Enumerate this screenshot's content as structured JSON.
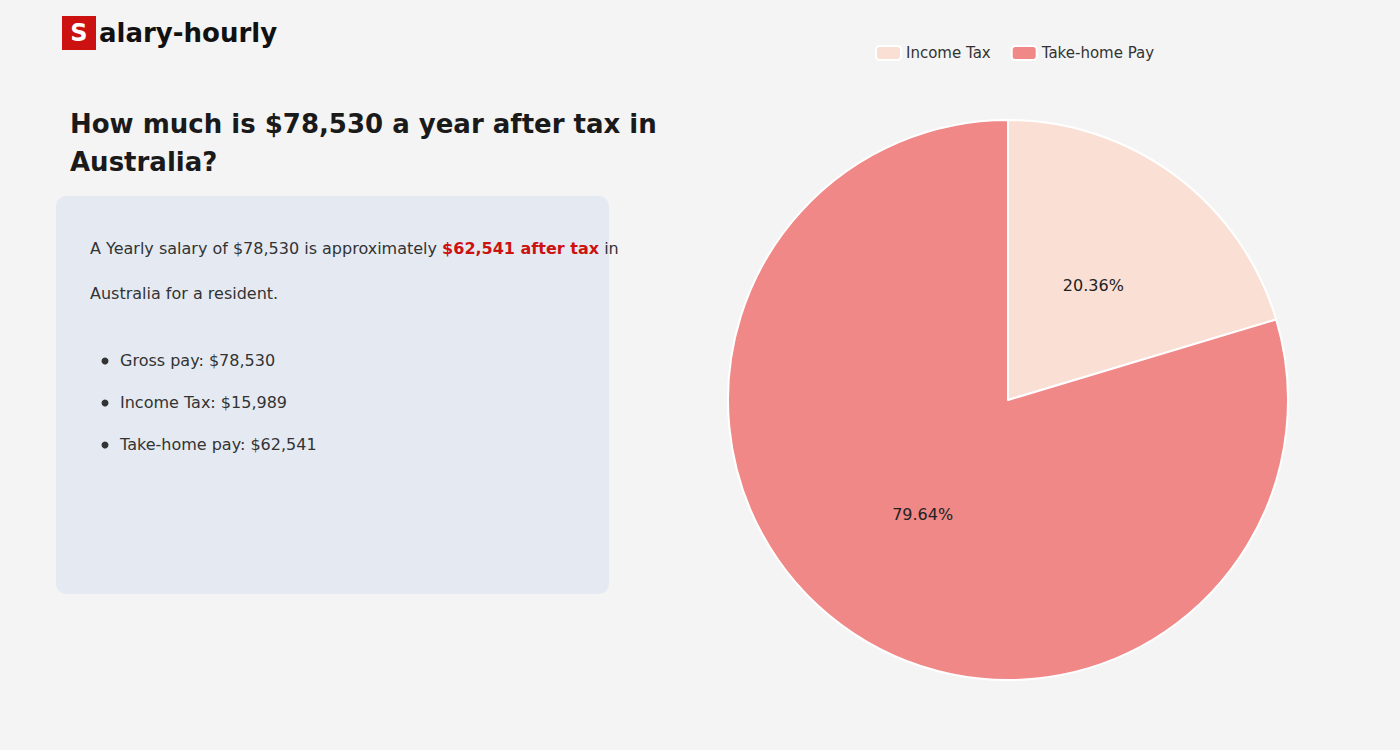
{
  "chart_data": {
    "type": "pie",
    "title": "How much is $78,530 a year after tax in\nAustralia?",
    "categories": [
      "Income Tax",
      "Take-home Pay"
    ],
    "values": [
      20.36,
      79.64
    ],
    "value_labels": [
      "20.36%",
      "79.64%"
    ],
    "colors": [
      "#fae0d4",
      "#f08888"
    ],
    "data_labels": true,
    "legend": "top",
    "annotations": [
      {
        "parts": [
          {
            "text": "S",
            "color": "#cc1111"
          },
          {
            "text": "alary-hourly"
          }
        ]
      },
      {
        "parts": [
          {
            "text": "A Yearly salary of $78,530 is approximately "
          },
          {
            "text": "$62,541 after tax",
            "color": "#cc1111"
          },
          {
            "text": " in"
          }
        ]
      },
      {
        "parts": [
          {
            "text": "Australia for a resident."
          }
        ]
      },
      {
        "parts": [
          {
            "text": "Gross pay: $78,530"
          }
        ],
        "marker": "bullet"
      },
      {
        "parts": [
          {
            "text": "Income Tax: $15,989"
          }
        ],
        "marker": "bullet"
      },
      {
        "parts": [
          {
            "text": "Take-home pay: $62,541"
          }
        ],
        "marker": "bullet"
      }
    ]
  }
}
